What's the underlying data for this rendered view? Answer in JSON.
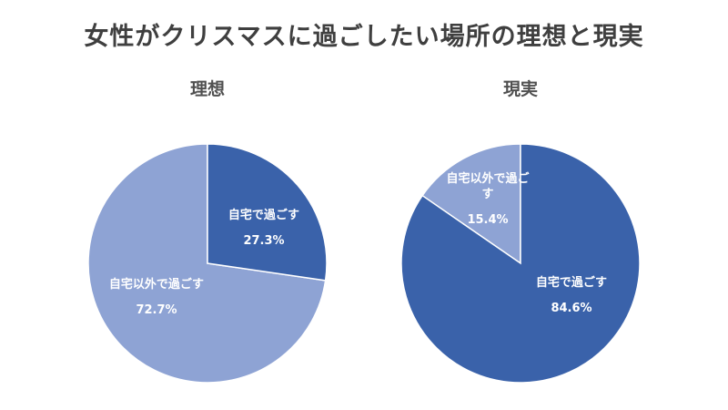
{
  "title": "女性がクリスマスに過ごしたい場所の理想と現実",
  "colors": {
    "dark": "#3A62AA",
    "light": "#8EA3D4",
    "stroke": "#ffffff"
  },
  "chart_data": [
    {
      "type": "pie",
      "title": "理想",
      "start_angle_deg": 0,
      "direction": "clockwise",
      "slices": [
        {
          "label": "自宅で過ごす",
          "value": 27.3,
          "value_label": "27.3%",
          "color": "#3A62AA"
        },
        {
          "label": "自宅以外で過ごす",
          "value": 72.7,
          "value_label": "72.7%",
          "color": "#8EA3D4"
        }
      ]
    },
    {
      "type": "pie",
      "title": "現実",
      "start_angle_deg": 0,
      "direction": "clockwise",
      "slices": [
        {
          "label": "自宅で過ごす",
          "value": 84.6,
          "value_label": "84.6%",
          "color": "#3A62AA"
        },
        {
          "label": "自宅以外で過ごす",
          "value": 15.4,
          "value_label": "15.4%",
          "color": "#8EA3D4",
          "label_lines": [
            "自宅以外で過ご",
            "す"
          ]
        }
      ]
    }
  ]
}
